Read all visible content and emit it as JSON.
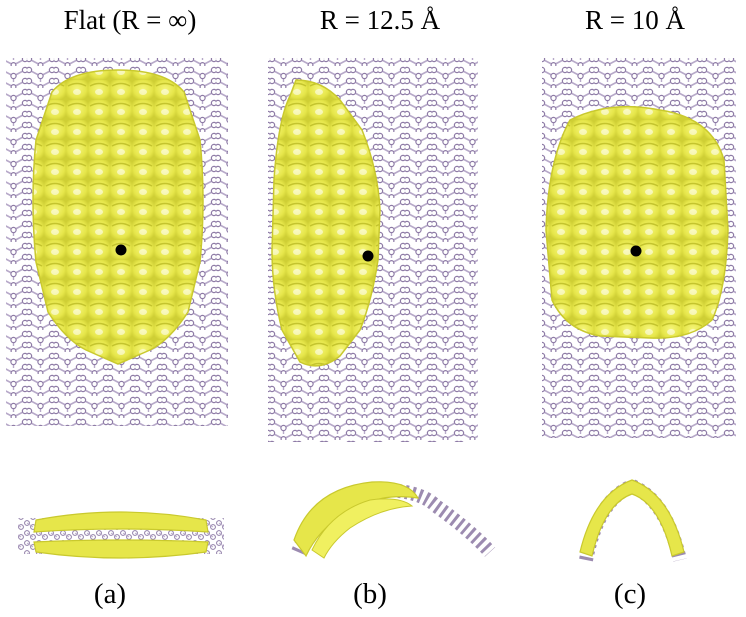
{
  "panels": [
    {
      "title": "Flat (R = ∞)",
      "label": "(a)"
    },
    {
      "title": "R = 12.5 Å",
      "label": "(b)"
    },
    {
      "title": "R = 10 Å",
      "label": "(c)"
    }
  ],
  "colors": {
    "lattice": "#9c8bb0",
    "density": "#e8e84a",
    "density_edge": "#c9c92e",
    "marker": "#000000"
  }
}
